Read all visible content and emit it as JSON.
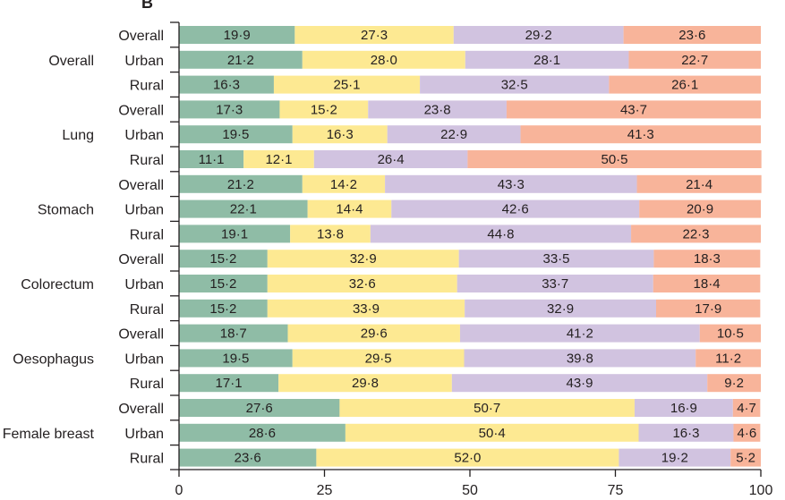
{
  "chart_data": {
    "type": "bar",
    "orientation": "horizontal",
    "stacked": true,
    "panel_label": "B",
    "title": "",
    "xlabel": "",
    "ylabel": "",
    "xlim": [
      0,
      100
    ],
    "xticks": [
      0,
      25,
      50,
      75,
      100
    ],
    "grid": false,
    "legend": "none",
    "segment_colors": [
      "#8fbca6",
      "#fde992",
      "#d1c3e0",
      "#f8b49a"
    ],
    "groups": [
      {
        "name": "Overall",
        "rows": [
          {
            "label": "Overall",
            "values": [
              19.9,
              27.3,
              29.2,
              23.6
            ]
          },
          {
            "label": "Urban",
            "values": [
              21.2,
              28.0,
              28.1,
              22.7
            ]
          },
          {
            "label": "Rural",
            "values": [
              16.3,
              25.1,
              32.5,
              26.1
            ]
          }
        ]
      },
      {
        "name": "Lung",
        "rows": [
          {
            "label": "Overall",
            "values": [
              17.3,
              15.2,
              23.8,
              43.7
            ]
          },
          {
            "label": "Urban",
            "values": [
              19.5,
              16.3,
              22.9,
              41.3
            ]
          },
          {
            "label": "Rural",
            "values": [
              11.1,
              12.1,
              26.4,
              50.5
            ]
          }
        ]
      },
      {
        "name": "Stomach",
        "rows": [
          {
            "label": "Overall",
            "values": [
              21.2,
              14.2,
              43.3,
              21.4
            ]
          },
          {
            "label": "Urban",
            "values": [
              22.1,
              14.4,
              42.6,
              20.9
            ]
          },
          {
            "label": "Rural",
            "values": [
              19.1,
              13.8,
              44.8,
              22.3
            ]
          }
        ]
      },
      {
        "name": "Colorectum",
        "rows": [
          {
            "label": "Overall",
            "values": [
              15.2,
              32.9,
              33.5,
              18.3
            ]
          },
          {
            "label": "Urban",
            "values": [
              15.2,
              32.6,
              33.7,
              18.4
            ]
          },
          {
            "label": "Rural",
            "values": [
              15.2,
              33.9,
              32.9,
              17.9
            ]
          }
        ]
      },
      {
        "name": "Oesophagus",
        "rows": [
          {
            "label": "Overall",
            "values": [
              18.7,
              29.6,
              41.2,
              10.5
            ]
          },
          {
            "label": "Urban",
            "values": [
              19.5,
              29.5,
              39.8,
              11.2
            ]
          },
          {
            "label": "Rural",
            "values": [
              17.1,
              29.8,
              43.9,
              9.2
            ]
          }
        ]
      },
      {
        "name": "Female breast",
        "rows": [
          {
            "label": "Overall",
            "values": [
              27.6,
              50.7,
              16.9,
              4.7
            ]
          },
          {
            "label": "Urban",
            "values": [
              28.6,
              50.4,
              16.3,
              4.6
            ]
          },
          {
            "label": "Rural",
            "values": [
              23.6,
              52.0,
              19.2,
              5.2
            ]
          }
        ]
      }
    ]
  }
}
